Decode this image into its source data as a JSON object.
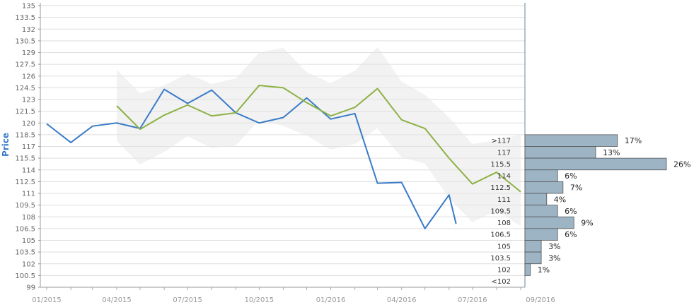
{
  "chart_data": {
    "type": "line",
    "ylabel": "Price",
    "xlabel": "",
    "ylim": [
      99,
      135
    ],
    "yticks": [
      "135",
      "133.5",
      "132",
      "130.5",
      "129",
      "127.5",
      "126",
      "124.5",
      "123",
      "121.5",
      "120",
      "118.5",
      "117",
      "115.5",
      "114",
      "112.5",
      "111",
      "109.5",
      "108",
      "106.5",
      "105",
      "103.5",
      "102",
      "100.5",
      "99"
    ],
    "xticks": [
      "01/2015",
      "04/2015",
      "07/2015",
      "10/2015",
      "01/2016",
      "04/2016",
      "07/2016",
      "09/2016"
    ],
    "grid": true,
    "series": [
      {
        "color": "#3a7bc8",
        "x": [
          "2015-01-01",
          "2015-02-01",
          "2015-03-01",
          "2015-04-01",
          "2015-05-01",
          "2015-06-01",
          "2015-07-01",
          "2015-08-01",
          "2015-09-01",
          "2015-10-01",
          "2015-11-01",
          "2015-12-01",
          "2016-01-01",
          "2016-02-01",
          "2016-03-01",
          "2016-04-01",
          "2016-05-01",
          "2016-06-01",
          "2016-06-10"
        ],
        "y": [
          119.9,
          117.5,
          119.6,
          120.0,
          119.3,
          124.3,
          122.5,
          124.2,
          121.3,
          120.0,
          120.7,
          123.2,
          120.5,
          121.2,
          112.3,
          112.4,
          106.5,
          110.8,
          107.1
        ]
      },
      {
        "color": "#8db144",
        "x": [
          "2015-04-01",
          "2015-05-01",
          "2015-06-01",
          "2015-07-01",
          "2015-08-01",
          "2015-09-01",
          "2015-10-01",
          "2015-11-01",
          "2015-12-01",
          "2016-01-01",
          "2016-02-01",
          "2016-03-01",
          "2016-04-01",
          "2016-05-01",
          "2016-06-01",
          "2016-07-01",
          "2016-08-01",
          "2016-09-01"
        ],
        "y": [
          122.2,
          119.2,
          121.0,
          122.3,
          120.9,
          121.3,
          124.8,
          124.5,
          122.6,
          120.9,
          122.0,
          124.4,
          120.4,
          119.3,
          115.5,
          112.2,
          113.7,
          111.2
        ]
      }
    ],
    "band": {
      "color": "#e6e6e6",
      "x": [
        "2015-04-01",
        "2015-05-01",
        "2015-06-01",
        "2015-07-01",
        "2015-08-01",
        "2015-09-01",
        "2015-10-01",
        "2015-11-01",
        "2015-12-01",
        "2016-01-01",
        "2016-02-01",
        "2016-03-01",
        "2016-04-01",
        "2016-05-01",
        "2016-06-01",
        "2016-07-01",
        "2016-08-01",
        "2016-09-01"
      ],
      "upper": [
        126.8,
        123.8,
        124.8,
        126.3,
        125.0,
        125.7,
        129.0,
        129.6,
        126.5,
        125.1,
        126.7,
        129.7,
        125.3,
        123.6,
        120.7,
        117.3,
        117.8,
        118.5
      ],
      "lower": [
        117.7,
        114.7,
        116.3,
        118.3,
        116.8,
        117.1,
        120.4,
        119.6,
        118.4,
        116.6,
        117.3,
        119.3,
        115.6,
        114.8,
        110.4,
        107.3,
        108.8,
        106.8
      ]
    },
    "histogram": {
      "color": "#9db4c4",
      "border": "#555555",
      "bins": [
        {
          "label": ">117",
          "pct": 17,
          "text": "17%"
        },
        {
          "label": "117",
          "pct": 13,
          "text": "13%"
        },
        {
          "label": "115.5",
          "pct": 26,
          "text": "26%"
        },
        {
          "label": "114",
          "pct": 6,
          "text": "6%"
        },
        {
          "label": "112.5",
          "pct": 7,
          "text": "7%"
        },
        {
          "label": "111",
          "pct": 4,
          "text": "4%"
        },
        {
          "label": "109.5",
          "pct": 6,
          "text": "6%"
        },
        {
          "label": "108",
          "pct": 9,
          "text": "9%"
        },
        {
          "label": "106.5",
          "pct": 6,
          "text": "6%"
        },
        {
          "label": "105",
          "pct": 3,
          "text": "3%"
        },
        {
          "label": "103.5",
          "pct": 3,
          "text": "3%"
        },
        {
          "label": "102",
          "pct": 1,
          "text": "1%"
        },
        {
          "label": "<102",
          "pct": 0,
          "text": ""
        }
      ]
    }
  }
}
